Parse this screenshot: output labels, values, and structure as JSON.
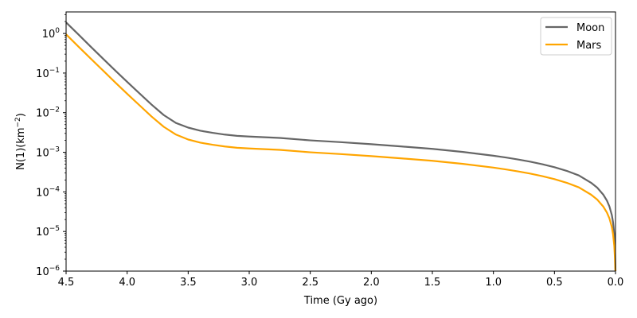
{
  "chart_data": {
    "type": "line",
    "title": "",
    "xlabel": "Time (Gy ago)",
    "ylabel": "N(1)(km",
    "ylabel_sup": "−2",
    "ylabel_tail": ")",
    "x_reversed": true,
    "xlim": [
      4.5,
      0.0
    ],
    "ylim": [
      1e-06,
      3.5
    ],
    "yscale": "log",
    "grid": false,
    "legend_position": "top-right",
    "x_ticks": [
      "4.5",
      "4.0",
      "3.5",
      "3.0",
      "2.5",
      "2.0",
      "1.5",
      "1.0",
      "0.5",
      "0.0"
    ],
    "y_ticks": [
      {
        "base": "10",
        "exp": "−6"
      },
      {
        "base": "10",
        "exp": "−5"
      },
      {
        "base": "10",
        "exp": "−4"
      },
      {
        "base": "10",
        "exp": "−3"
      },
      {
        "base": "10",
        "exp": "−2"
      },
      {
        "base": "10",
        "exp": "−1"
      },
      {
        "base": "10",
        "exp": "0"
      }
    ],
    "series": [
      {
        "name": "Moon",
        "color": "#666666",
        "x": [
          4.5,
          4.4,
          4.3,
          4.2,
          4.1,
          4.0,
          3.9,
          3.8,
          3.7,
          3.6,
          3.5,
          3.4,
          3.3,
          3.2,
          3.1,
          3.0,
          2.75,
          2.5,
          2.25,
          2.0,
          1.75,
          1.5,
          1.25,
          1.0,
          0.9,
          0.8,
          0.7,
          0.6,
          0.5,
          0.4,
          0.3,
          0.2,
          0.15,
          0.1,
          0.07,
          0.05,
          0.03,
          0.02,
          0.01,
          0.005,
          0.002,
          0.0
        ],
        "y": [
          1.9,
          0.95,
          0.47,
          0.235,
          0.118,
          0.06,
          0.031,
          0.016,
          0.0087,
          0.0055,
          0.0042,
          0.0035,
          0.0031,
          0.0028,
          0.0026,
          0.0025,
          0.0023,
          0.002,
          0.0018,
          0.0016,
          0.0014,
          0.00122,
          0.00102,
          0.00082,
          0.00074,
          0.00066,
          0.00058,
          0.0005,
          0.00042,
          0.00034,
          0.00026,
          0.00017,
          0.000128,
          8.5e-05,
          6e-05,
          4.3e-05,
          2.6e-05,
          1.7e-05,
          8.5e-06,
          4.3e-06,
          1.7e-06,
          1e-06
        ]
      },
      {
        "name": "Mars",
        "color": "#ffa500",
        "x": [
          4.5,
          4.4,
          4.3,
          4.2,
          4.1,
          4.0,
          3.9,
          3.8,
          3.7,
          3.6,
          3.5,
          3.4,
          3.3,
          3.2,
          3.1,
          3.0,
          2.75,
          2.5,
          2.25,
          2.0,
          1.75,
          1.5,
          1.25,
          1.0,
          0.9,
          0.8,
          0.7,
          0.6,
          0.5,
          0.4,
          0.3,
          0.2,
          0.15,
          0.1,
          0.07,
          0.05,
          0.03,
          0.02,
          0.01,
          0.005,
          0.002,
          0.0
        ],
        "y": [
          0.95,
          0.47,
          0.235,
          0.118,
          0.059,
          0.03,
          0.0155,
          0.008,
          0.0044,
          0.0028,
          0.0021,
          0.00175,
          0.00155,
          0.0014,
          0.0013,
          0.00125,
          0.00115,
          0.001,
          0.0009,
          0.0008,
          0.0007,
          0.00061,
          0.00051,
          0.00041,
          0.00037,
          0.00033,
          0.00029,
          0.00025,
          0.00021,
          0.00017,
          0.00013,
          8.5e-05,
          6.4e-05,
          4.25e-05,
          3e-05,
          2.15e-05,
          1.3e-05,
          8.5e-06,
          4.3e-06,
          2.2e-06,
          1.2e-06,
          1e-06
        ]
      }
    ]
  }
}
